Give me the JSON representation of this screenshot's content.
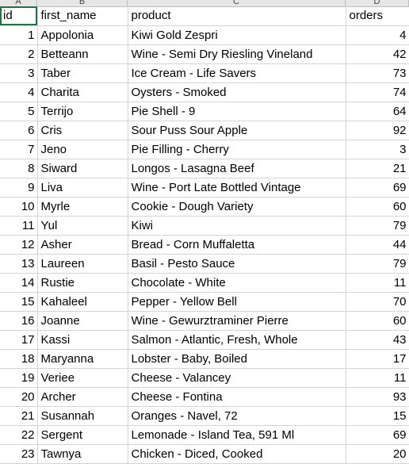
{
  "columns": [
    "A",
    "B",
    "C",
    "D"
  ],
  "header": [
    "id",
    "first_name",
    "product",
    "orders"
  ],
  "rows": [
    [
      "1",
      "Appolonia",
      "Kiwi Gold Zespri",
      "4"
    ],
    [
      "2",
      "Betteann",
      "Wine - Semi Dry Riesling Vineland",
      "42"
    ],
    [
      "3",
      "Taber",
      "Ice Cream - Life Savers",
      "73"
    ],
    [
      "4",
      "Charita",
      "Oysters - Smoked",
      "74"
    ],
    [
      "5",
      "Terrijo",
      "Pie Shell - 9",
      "64"
    ],
    [
      "6",
      "Cris",
      "Sour Puss Sour Apple",
      "92"
    ],
    [
      "7",
      "Jeno",
      "Pie Filling - Cherry",
      "3"
    ],
    [
      "8",
      "Siward",
      "Longos - Lasagna Beef",
      "21"
    ],
    [
      "9",
      "Liva",
      "Wine - Port Late Bottled Vintage",
      "69"
    ],
    [
      "10",
      "Myrle",
      "Cookie - Dough Variety",
      "60"
    ],
    [
      "11",
      "Yul",
      "Kiwi",
      "79"
    ],
    [
      "12",
      "Asher",
      "Bread - Corn Muffaletta",
      "44"
    ],
    [
      "13",
      "Laureen",
      "Basil - Pesto Sauce",
      "79"
    ],
    [
      "14",
      "Rustie",
      "Chocolate - White",
      "11"
    ],
    [
      "15",
      "Kahaleel",
      "Pepper - Yellow Bell",
      "70"
    ],
    [
      "16",
      "Joanne",
      "Wine - Gewurztraminer Pierre",
      "60"
    ],
    [
      "17",
      "Kassi",
      "Salmon - Atlantic, Fresh, Whole",
      "43"
    ],
    [
      "18",
      "Maryanna",
      "Lobster - Baby, Boiled",
      "17"
    ],
    [
      "19",
      "Veriee",
      "Cheese - Valancey",
      "11"
    ],
    [
      "20",
      "Archer",
      "Cheese - Fontina",
      "93"
    ],
    [
      "21",
      "Susannah",
      "Oranges - Navel, 72",
      "15"
    ],
    [
      "22",
      "Sergent",
      "Lemonade - Island Tea, 591 Ml",
      "69"
    ],
    [
      "23",
      "Tawnya",
      "Chicken - Diced, Cooked",
      "20"
    ]
  ]
}
